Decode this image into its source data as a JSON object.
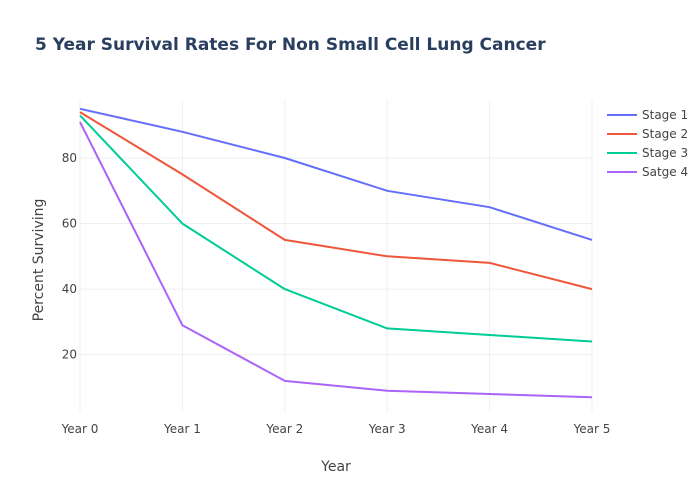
{
  "chart_data": {
    "type": "line",
    "title": "5 Year Survival Rates For Non Small Cell Lung Cancer",
    "xlabel": "Year",
    "ylabel": "Percent Surviving",
    "categories": [
      "Year 0",
      "Year 1",
      "Year 2",
      "Year 3",
      "Year 4",
      "Year 5"
    ],
    "yticks": [
      20,
      40,
      60,
      80
    ],
    "ylim": [
      2.5,
      97.7
    ],
    "grid": true,
    "legend_position": "top-right",
    "series": [
      {
        "name": "Stage 1",
        "color": "#636efa",
        "values": [
          95,
          88,
          80,
          70,
          65,
          55
        ]
      },
      {
        "name": "Stage 2",
        "color": "#ef553b",
        "values": [
          94,
          75,
          55,
          50,
          48,
          40
        ]
      },
      {
        "name": "Stage 3",
        "color": "#00cc96",
        "values": [
          93,
          60,
          40,
          28,
          26,
          24
        ]
      },
      {
        "name": "Satge 4",
        "color": "#ab63fa",
        "values": [
          91,
          29,
          12,
          9,
          8,
          7
        ]
      }
    ]
  }
}
